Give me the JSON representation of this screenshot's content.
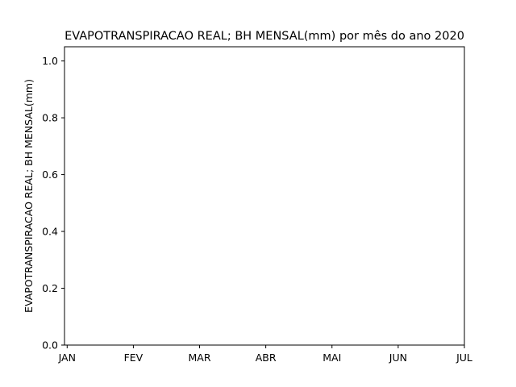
{
  "chart_data": {
    "type": "line",
    "title": "EVAPOTRANSPIRACAO REAL; BH MENSAL(mm) por mês do ano 2020",
    "xlabel": "",
    "ylabel": "EVAPOTRANSPIRACAO REAL; BH MENSAL(mm)",
    "categories": [
      "JAN",
      "FEV",
      "MAR",
      "ABR",
      "MAI",
      "JUN",
      "JUL"
    ],
    "x_ticks": [
      "JAN",
      "FEV",
      "MAR",
      "ABR",
      "MAI",
      "JUN",
      "JUL"
    ],
    "y_ticks": [
      "0.0",
      "0.2",
      "0.4",
      "0.6",
      "0.8",
      "1.0"
    ],
    "xlim": [
      -0.04,
      6
    ],
    "ylim": [
      0,
      1.05
    ],
    "series": [],
    "grid": false,
    "legend": "none",
    "colors": {
      "axes": "#000000",
      "background": "#ffffff"
    }
  }
}
